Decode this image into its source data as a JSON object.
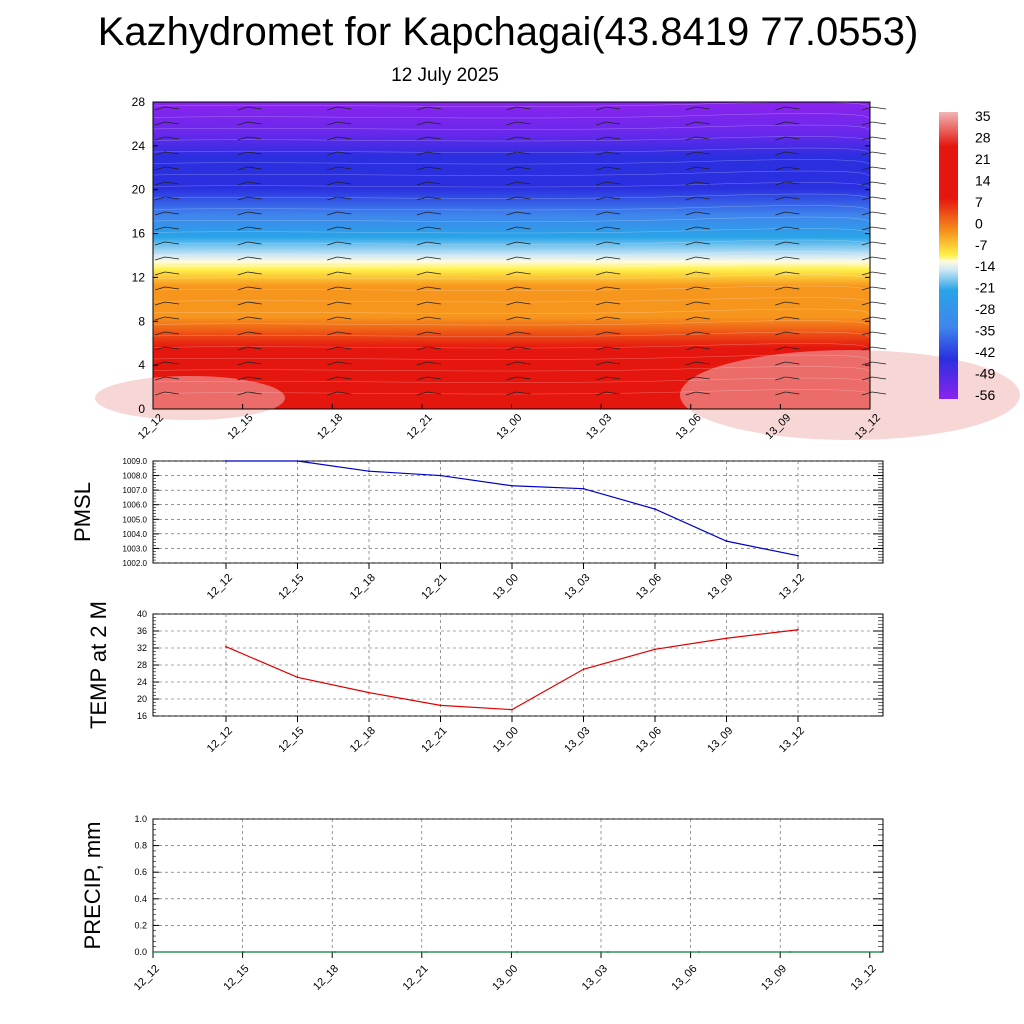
{
  "title": "Kazhydromet for Kapchagai(43.8419 77.0553)",
  "subtitle": "12 July 2025",
  "chart_data": [
    {
      "type": "heatmap",
      "name": "cross-section",
      "x_ticks": [
        "12_12",
        "12_15",
        "12_18",
        "12_21",
        "13_00",
        "13_03",
        "13_06",
        "13_09",
        "13_12"
      ],
      "y_ticks": [
        "0",
        "4",
        "8",
        "12",
        "16",
        "20",
        "24",
        "28"
      ],
      "ylim": [
        0,
        28
      ],
      "colorbar_labels": [
        "35",
        "28",
        "21",
        "14",
        "7",
        "0",
        "-7",
        "-14",
        "-21",
        "-28",
        "-35",
        "-42",
        "-49",
        "-56"
      ],
      "colors": {
        "hot": "#f0b5b5",
        "red": "#e5160e",
        "orange": "#f7961d",
        "yellow": "#fff14a",
        "cyan": "#29a4e8",
        "blue": "#2a2fe0",
        "purple": "#8a24ee"
      }
    },
    {
      "type": "line",
      "ylabel": "PMSL",
      "y_ticks": [
        "1009.0",
        "1008.0",
        "1007.0",
        "1006.0",
        "1005.0",
        "1004.0",
        "1003.0",
        "1002.0"
      ],
      "ylim": [
        1002,
        1009
      ],
      "x_ticks": [
        "12_12",
        "12_15",
        "12_18",
        "12_21",
        "13_00",
        "13_03",
        "13_06",
        "13_09",
        "13_12"
      ],
      "values": [
        1009.0,
        1009.0,
        1008.3,
        1008.0,
        1007.3,
        1007.1,
        1005.7,
        1003.5,
        1002.5
      ],
      "color": "#0000cc"
    },
    {
      "type": "line",
      "ylabel": "TEMP at 2 M",
      "y_ticks": [
        "40",
        "36",
        "32",
        "28",
        "24",
        "20",
        "16"
      ],
      "ylim": [
        16,
        40
      ],
      "x_ticks": [
        "12_12",
        "12_15",
        "12_18",
        "12_21",
        "13_00",
        "13_03",
        "13_06",
        "13_09",
        "13_12"
      ],
      "values": [
        32.3,
        25.1,
        21.5,
        18.5,
        17.5,
        27.0,
        31.7,
        34.3,
        36.3
      ],
      "color": "#e00000"
    },
    {
      "type": "line",
      "ylabel": "PRECIP, mm",
      "y_ticks": [
        "1.0",
        "0.8",
        "0.6",
        "0.4",
        "0.2",
        "0.0"
      ],
      "ylim": [
        0,
        1
      ],
      "x_ticks": [
        "12_12",
        "12_15",
        "12_18",
        "12_21",
        "13_00",
        "13_03",
        "13_06",
        "13_09",
        "13_12"
      ],
      "values": [
        0,
        0,
        0,
        0,
        0,
        0,
        0,
        0,
        0
      ],
      "color": "#0a7a3a"
    }
  ]
}
